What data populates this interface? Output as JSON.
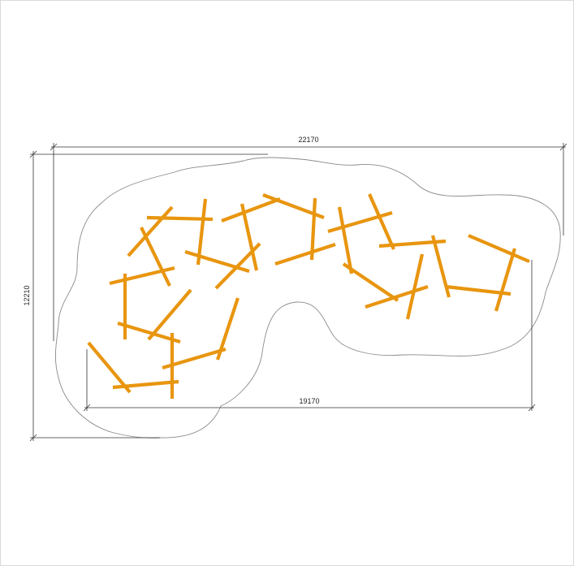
{
  "dimensions": {
    "overall_width": "22170",
    "inner_width": "19170",
    "overall_height": "12210"
  },
  "colors": {
    "log": "#e8950f",
    "outline": "#8a8a8a",
    "dimension_line": "#333333",
    "frame": "#d9d9d9"
  }
}
